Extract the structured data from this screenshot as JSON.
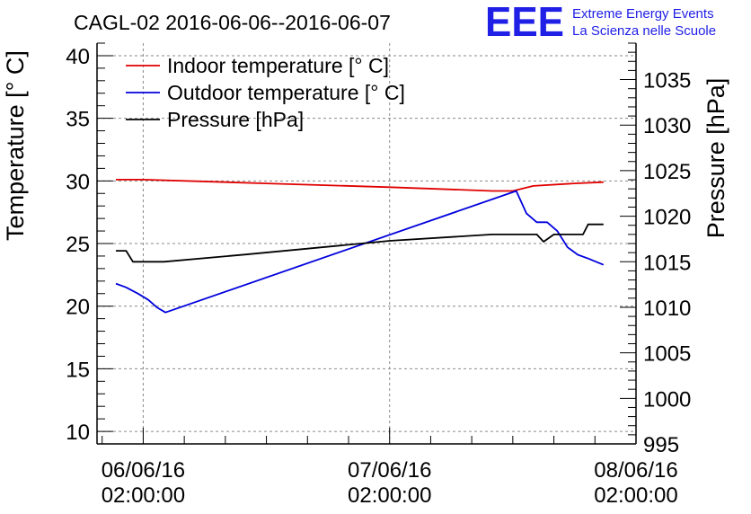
{
  "chart_data": {
    "type": "line",
    "title": "CAGL-02 2016-06-06--2016-06-07",
    "ylabel": "Temperature [° C]",
    "y2label": "Pressure [hPa]",
    "xlabel": "",
    "ylim": [
      9,
      41
    ],
    "y2lim": [
      995,
      1039
    ],
    "xlim": [
      "2016-06-05 21:30:00",
      "2016-06-08 02:00:00"
    ],
    "yticks": [
      10,
      15,
      20,
      25,
      30,
      35,
      40
    ],
    "y2ticks": [
      995,
      1000,
      1005,
      1010,
      1015,
      1020,
      1025,
      1030,
      1035
    ],
    "xticks": [
      {
        "x": "2016-06-06 02:00:00",
        "line1": "06/06/16",
        "line2": "02:00:00"
      },
      {
        "x": "2016-06-07 02:00:00",
        "line1": "07/06/16",
        "line2": "02:00:00"
      },
      {
        "x": "2016-06-08 02:00:00",
        "line1": "08/06/16",
        "line2": "02:00:00"
      }
    ],
    "grid": true,
    "legend": "top-left",
    "series": [
      {
        "name": "Indoor temperature [° C]",
        "axis": "left",
        "color": "#e00000",
        "points": [
          [
            "2016-06-05 23:20:00",
            30.1
          ],
          [
            "2016-06-06 02:00:00",
            30.1
          ],
          [
            "2016-06-06 14:00:00",
            29.8
          ],
          [
            "2016-06-07 02:00:00",
            29.5
          ],
          [
            "2016-06-07 12:00:00",
            29.2
          ],
          [
            "2016-06-07 14:00:00",
            29.2
          ],
          [
            "2016-06-07 16:00:00",
            29.6
          ],
          [
            "2016-06-07 20:00:00",
            29.8
          ],
          [
            "2016-06-07 22:50:00",
            29.9
          ]
        ]
      },
      {
        "name": "Outdoor temperature [° C]",
        "axis": "left",
        "color": "#0000dd",
        "points": [
          [
            "2016-06-05 23:20:00",
            21.8
          ],
          [
            "2016-06-06 00:20:00",
            21.5
          ],
          [
            "2016-06-06 01:30:00",
            21.0
          ],
          [
            "2016-06-06 02:30:00",
            20.5
          ],
          [
            "2016-06-06 03:20:00",
            19.9
          ],
          [
            "2016-06-06 04:10:00",
            19.5
          ],
          [
            "2016-06-07 14:20:00",
            29.2
          ],
          [
            "2016-06-07 15:20:00",
            27.4
          ],
          [
            "2016-06-07 16:20:00",
            26.7
          ],
          [
            "2016-06-07 17:20:00",
            26.7
          ],
          [
            "2016-06-07 18:20:00",
            26.0
          ],
          [
            "2016-06-07 19:20:00",
            24.7
          ],
          [
            "2016-06-07 20:20:00",
            24.1
          ],
          [
            "2016-06-07 21:20:00",
            23.8
          ],
          [
            "2016-06-07 22:50:00",
            23.3
          ]
        ]
      },
      {
        "name": "Pressure [hPa]",
        "axis": "right",
        "color": "#000000",
        "points": [
          [
            "2016-06-05 23:20:00",
            1016.2
          ],
          [
            "2016-06-06 00:20:00",
            1016.2
          ],
          [
            "2016-06-06 01:00:00",
            1015.0
          ],
          [
            "2016-06-06 04:00:00",
            1015.0
          ],
          [
            "2016-06-06 12:00:00",
            1015.8
          ],
          [
            "2016-06-07 02:00:00",
            1017.3
          ],
          [
            "2016-06-07 12:00:00",
            1018.0
          ],
          [
            "2016-06-07 15:00:00",
            1018.0
          ],
          [
            "2016-06-07 16:20:00",
            1018.0
          ],
          [
            "2016-06-07 17:00:00",
            1017.2
          ],
          [
            "2016-06-07 18:00:00",
            1018.0
          ],
          [
            "2016-06-07 20:50:00",
            1018.0
          ],
          [
            "2016-06-07 21:20:00",
            1019.1
          ],
          [
            "2016-06-07 22:50:00",
            1019.1
          ]
        ]
      }
    ]
  },
  "logo": {
    "mark": "EEE",
    "line1": "Extreme Energy Events",
    "line2": "La Scienza nelle Scuole",
    "color": "#1f1fe6"
  }
}
